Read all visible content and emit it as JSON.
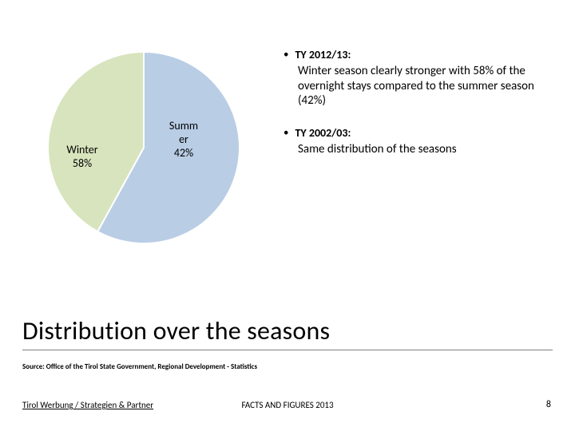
{
  "chart": {
    "type": "pie",
    "background_color": "#ffffff",
    "slices": [
      {
        "name": "Winter",
        "value": 58,
        "label": "Winter\n58%",
        "color": "#b9cde5",
        "stroke": "#ffffff",
        "stroke_width": 2
      },
      {
        "name": "Summer",
        "value": 42,
        "label": "Summ\ner\n42%",
        "color": "#d7e4bd",
        "stroke": "#ffffff",
        "stroke_width": 2
      }
    ],
    "start_angle_deg": 0,
    "radius": 120,
    "label_fontsize": 14,
    "label_color": "#000000"
  },
  "bullets": [
    {
      "marker": "•",
      "heading": "TY 2012/13:",
      "body": "Winter season clearly stronger with 58% of the overnight stays compared to the summer season (42%)"
    },
    {
      "marker": "•",
      "heading": "TY 2002/03:",
      "body": "Same distribution of the seasons"
    }
  ],
  "title": "Distribution over the seasons",
  "source": "Source: Office of the Tirol State Government, Regional Development - Statistics",
  "footer": {
    "left": "Tirol Werbung / Strategien & Partner",
    "center_prefix": "FACTS AND ",
    "center_suffix": "FIGURES 2013",
    "page": "8"
  },
  "colors": {
    "text": "#000000",
    "rule": "#808080"
  },
  "fontsize": {
    "title": 32,
    "bullet_heading": 14,
    "bullet_body": 15,
    "source": 9,
    "footer": 11,
    "page": 12
  }
}
